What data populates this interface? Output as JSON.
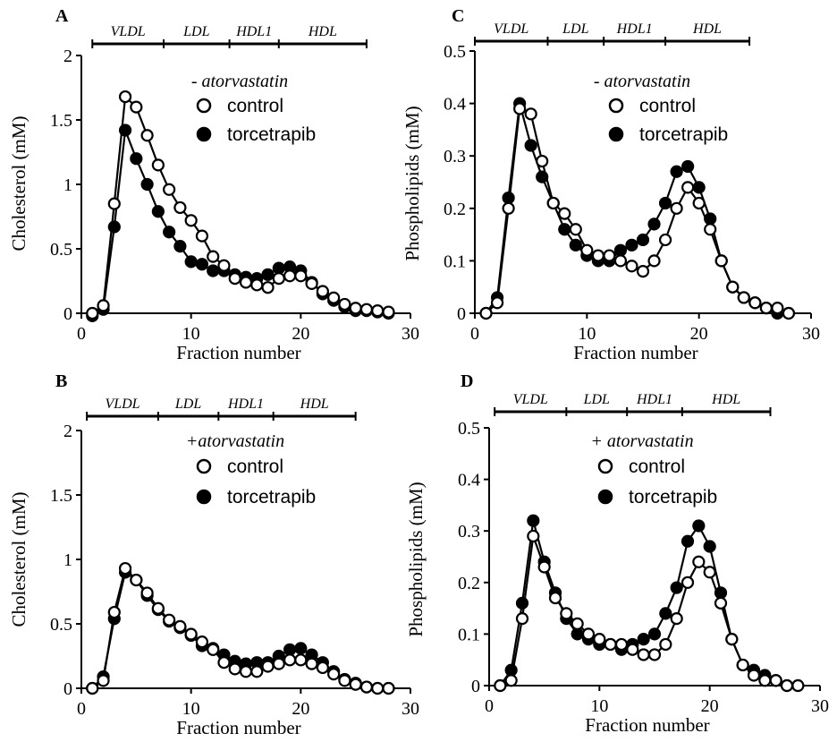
{
  "chart_data": [
    {
      "id": "A",
      "type": "line",
      "panel_label": "A",
      "condition": "- atorvastatin",
      "xlabel": "Fraction number",
      "ylabel": "Cholesterol (mM)",
      "xlim": [
        0,
        30
      ],
      "ylim": [
        0,
        2
      ],
      "xticks": [
        0,
        10,
        20,
        30
      ],
      "yticks": [
        0,
        0.5,
        1,
        1.5,
        2
      ],
      "ytick_labels": [
        "0",
        "0.5",
        "1",
        "1.5",
        "2"
      ],
      "fractions": [
        {
          "label": "VLDL",
          "from": 1,
          "to": 7.5
        },
        {
          "label": "LDL",
          "from": 7.5,
          "to": 13.5
        },
        {
          "label": "HDL1",
          "from": 13.5,
          "to": 18
        },
        {
          "label": "HDL",
          "from": 18,
          "to": 26
        }
      ],
      "series": [
        {
          "name": "control",
          "marker": "open",
          "x": [
            1,
            2,
            3,
            4,
            5,
            6,
            7,
            8,
            9,
            10,
            11,
            12,
            13,
            14,
            15,
            16,
            17,
            18,
            19,
            20,
            21,
            22,
            23,
            24,
            25,
            26,
            27,
            28
          ],
          "y": [
            0,
            0.06,
            0.85,
            1.68,
            1.6,
            1.38,
            1.15,
            0.96,
            0.82,
            0.72,
            0.6,
            0.44,
            0.37,
            0.27,
            0.24,
            0.22,
            0.2,
            0.27,
            0.29,
            0.29,
            0.23,
            0.17,
            0.12,
            0.07,
            0.04,
            0.03,
            0.02,
            0.01
          ]
        },
        {
          "name": "torcetrapib",
          "marker": "filled",
          "x": [
            1,
            2,
            3,
            4,
            5,
            6,
            7,
            8,
            9,
            10,
            11,
            12,
            13,
            14,
            15,
            16,
            17,
            18,
            19,
            20,
            21,
            22,
            23,
            24,
            25,
            26,
            27,
            28
          ],
          "y": [
            -0.02,
            0.03,
            0.67,
            1.42,
            1.2,
            1.0,
            0.79,
            0.63,
            0.52,
            0.4,
            0.38,
            0.33,
            0.33,
            0.3,
            0.28,
            0.27,
            0.3,
            0.35,
            0.36,
            0.33,
            0.24,
            0.15,
            0.1,
            0.05,
            0.02,
            0.02,
            0.01,
            0.0
          ]
        }
      ]
    },
    {
      "id": "B",
      "type": "line",
      "panel_label": "B",
      "condition": "+atorvastatin",
      "xlabel": "Fraction number",
      "ylabel": "Cholesterol (mM)",
      "xlim": [
        0,
        30
      ],
      "ylim": [
        0,
        2
      ],
      "xticks": [
        0,
        10,
        20,
        30
      ],
      "yticks": [
        0,
        0.5,
        1,
        1.5,
        2
      ],
      "ytick_labels": [
        "0",
        "0.5",
        "1",
        "1.5",
        "2"
      ],
      "fractions": [
        {
          "label": "VLDL",
          "from": 0.5,
          "to": 7
        },
        {
          "label": "LDL",
          "from": 7,
          "to": 12.5
        },
        {
          "label": "HDL1",
          "from": 12.5,
          "to": 17.5
        },
        {
          "label": "HDL",
          "from": 17.5,
          "to": 25
        }
      ],
      "series": [
        {
          "name": "control",
          "marker": "open",
          "x": [
            1,
            2,
            3,
            4,
            5,
            6,
            7,
            8,
            9,
            10,
            11,
            12,
            13,
            14,
            15,
            16,
            17,
            18,
            19,
            20,
            21,
            22,
            23,
            24,
            25,
            26,
            27,
            28
          ],
          "y": [
            0,
            0.06,
            0.59,
            0.93,
            0.84,
            0.74,
            0.62,
            0.53,
            0.48,
            0.42,
            0.36,
            0.3,
            0.2,
            0.15,
            0.13,
            0.13,
            0.17,
            0.19,
            0.22,
            0.22,
            0.19,
            0.16,
            0.11,
            0.06,
            0.03,
            0.01,
            0.0,
            0.0
          ]
        },
        {
          "name": "torcetrapib",
          "marker": "filled",
          "x": [
            1,
            2,
            3,
            4,
            5,
            6,
            7,
            8,
            9,
            10,
            11,
            12,
            13,
            14,
            15,
            16,
            17,
            18,
            19,
            20,
            21,
            22,
            23,
            24,
            25,
            26,
            27,
            28
          ],
          "y": [
            0,
            0.09,
            0.54,
            0.9,
            0.84,
            0.72,
            0.61,
            0.52,
            0.47,
            0.41,
            0.33,
            0.31,
            0.26,
            0.21,
            0.19,
            0.2,
            0.2,
            0.25,
            0.3,
            0.31,
            0.26,
            0.2,
            0.13,
            0.07,
            0.04,
            0.01,
            0.0,
            0.0
          ]
        }
      ]
    },
    {
      "id": "C",
      "type": "line",
      "panel_label": "C",
      "condition": "- atorvastatin",
      "xlabel": "Fraction number",
      "ylabel": "Phospholipids (mM)",
      "xlim": [
        0,
        30
      ],
      "ylim": [
        0,
        0.5
      ],
      "xticks": [
        0,
        10,
        20,
        30
      ],
      "yticks": [
        0,
        0.1,
        0.2,
        0.3,
        0.4,
        0.5
      ],
      "ytick_labels": [
        "0",
        "0.1",
        "0.2",
        "0.3",
        "0.4",
        "0.5"
      ],
      "fractions": [
        {
          "label": "VLDL",
          "from": 0,
          "to": 6.5
        },
        {
          "label": "LDL",
          "from": 6.5,
          "to": 11.5
        },
        {
          "label": "HDL1",
          "from": 11.5,
          "to": 17
        },
        {
          "label": "HDL",
          "from": 17,
          "to": 24.5
        }
      ],
      "series": [
        {
          "name": "control",
          "marker": "open",
          "x": [
            1,
            2,
            3,
            4,
            5,
            6,
            7,
            8,
            9,
            10,
            11,
            12,
            13,
            14,
            15,
            16,
            17,
            18,
            19,
            20,
            21,
            22,
            23,
            24,
            25,
            26,
            27,
            28
          ],
          "y": [
            0,
            0.02,
            0.2,
            0.39,
            0.38,
            0.29,
            0.21,
            0.19,
            0.16,
            0.12,
            0.11,
            0.11,
            0.1,
            0.09,
            0.08,
            0.1,
            0.14,
            0.2,
            0.24,
            0.21,
            0.16,
            0.1,
            0.05,
            0.03,
            0.02,
            0.01,
            0.01,
            0.0
          ]
        },
        {
          "name": "torcetrapib",
          "marker": "filled",
          "x": [
            1,
            2,
            3,
            4,
            5,
            6,
            7,
            8,
            9,
            10,
            11,
            12,
            13,
            14,
            15,
            16,
            17,
            18,
            19,
            20,
            21,
            22,
            23,
            24,
            25,
            26,
            27,
            28
          ],
          "y": [
            0,
            0.03,
            0.22,
            0.4,
            0.32,
            0.26,
            0.21,
            0.16,
            0.13,
            0.11,
            0.1,
            0.1,
            0.12,
            0.13,
            0.14,
            0.17,
            0.21,
            0.27,
            0.28,
            0.24,
            0.18,
            0.1,
            0.05,
            0.03,
            0.02,
            0.01,
            0.0,
            0.0
          ]
        }
      ]
    },
    {
      "id": "D",
      "type": "line",
      "panel_label": "D",
      "condition": "+ atorvastatin",
      "xlabel": "Fraction number",
      "ylabel": "Phospholipids (mM)",
      "xlim": [
        0,
        30
      ],
      "ylim": [
        0,
        0.5
      ],
      "xticks": [
        0,
        10,
        20,
        30
      ],
      "yticks": [
        0,
        0.1,
        0.2,
        0.3,
        0.4,
        0.5
      ],
      "ytick_labels": [
        "0",
        "0.1",
        "0.2",
        "0.3",
        "0.4",
        "0.5"
      ],
      "fractions": [
        {
          "label": "VLDL",
          "from": 0.5,
          "to": 7
        },
        {
          "label": "LDL",
          "from": 7,
          "to": 12.5
        },
        {
          "label": "HDL1",
          "from": 12.5,
          "to": 17.5
        },
        {
          "label": "HDL",
          "from": 17.5,
          "to": 25.5
        }
      ],
      "series": [
        {
          "name": "control",
          "marker": "open",
          "x": [
            1,
            2,
            3,
            4,
            5,
            6,
            7,
            8,
            9,
            10,
            11,
            12,
            13,
            14,
            15,
            16,
            17,
            18,
            19,
            20,
            21,
            22,
            23,
            24,
            25,
            26,
            27,
            28
          ],
          "y": [
            0,
            0.01,
            0.13,
            0.29,
            0.23,
            0.17,
            0.14,
            0.12,
            0.1,
            0.09,
            0.08,
            0.08,
            0.07,
            0.06,
            0.06,
            0.08,
            0.13,
            0.2,
            0.24,
            0.22,
            0.16,
            0.09,
            0.04,
            0.02,
            0.01,
            0.01,
            0.0,
            0.0
          ]
        },
        {
          "name": "torcetrapib",
          "marker": "filled",
          "x": [
            1,
            2,
            3,
            4,
            5,
            6,
            7,
            8,
            9,
            10,
            11,
            12,
            13,
            14,
            15,
            16,
            17,
            18,
            19,
            20,
            21,
            22,
            23,
            24,
            25,
            26,
            27,
            28
          ],
          "y": [
            0,
            0.03,
            0.16,
            0.32,
            0.24,
            0.18,
            0.13,
            0.1,
            0.09,
            0.08,
            0.08,
            0.07,
            0.08,
            0.09,
            0.1,
            0.14,
            0.19,
            0.28,
            0.31,
            0.27,
            0.18,
            0.09,
            0.04,
            0.03,
            0.02,
            0.01,
            0.0,
            0.0
          ]
        }
      ]
    }
  ]
}
